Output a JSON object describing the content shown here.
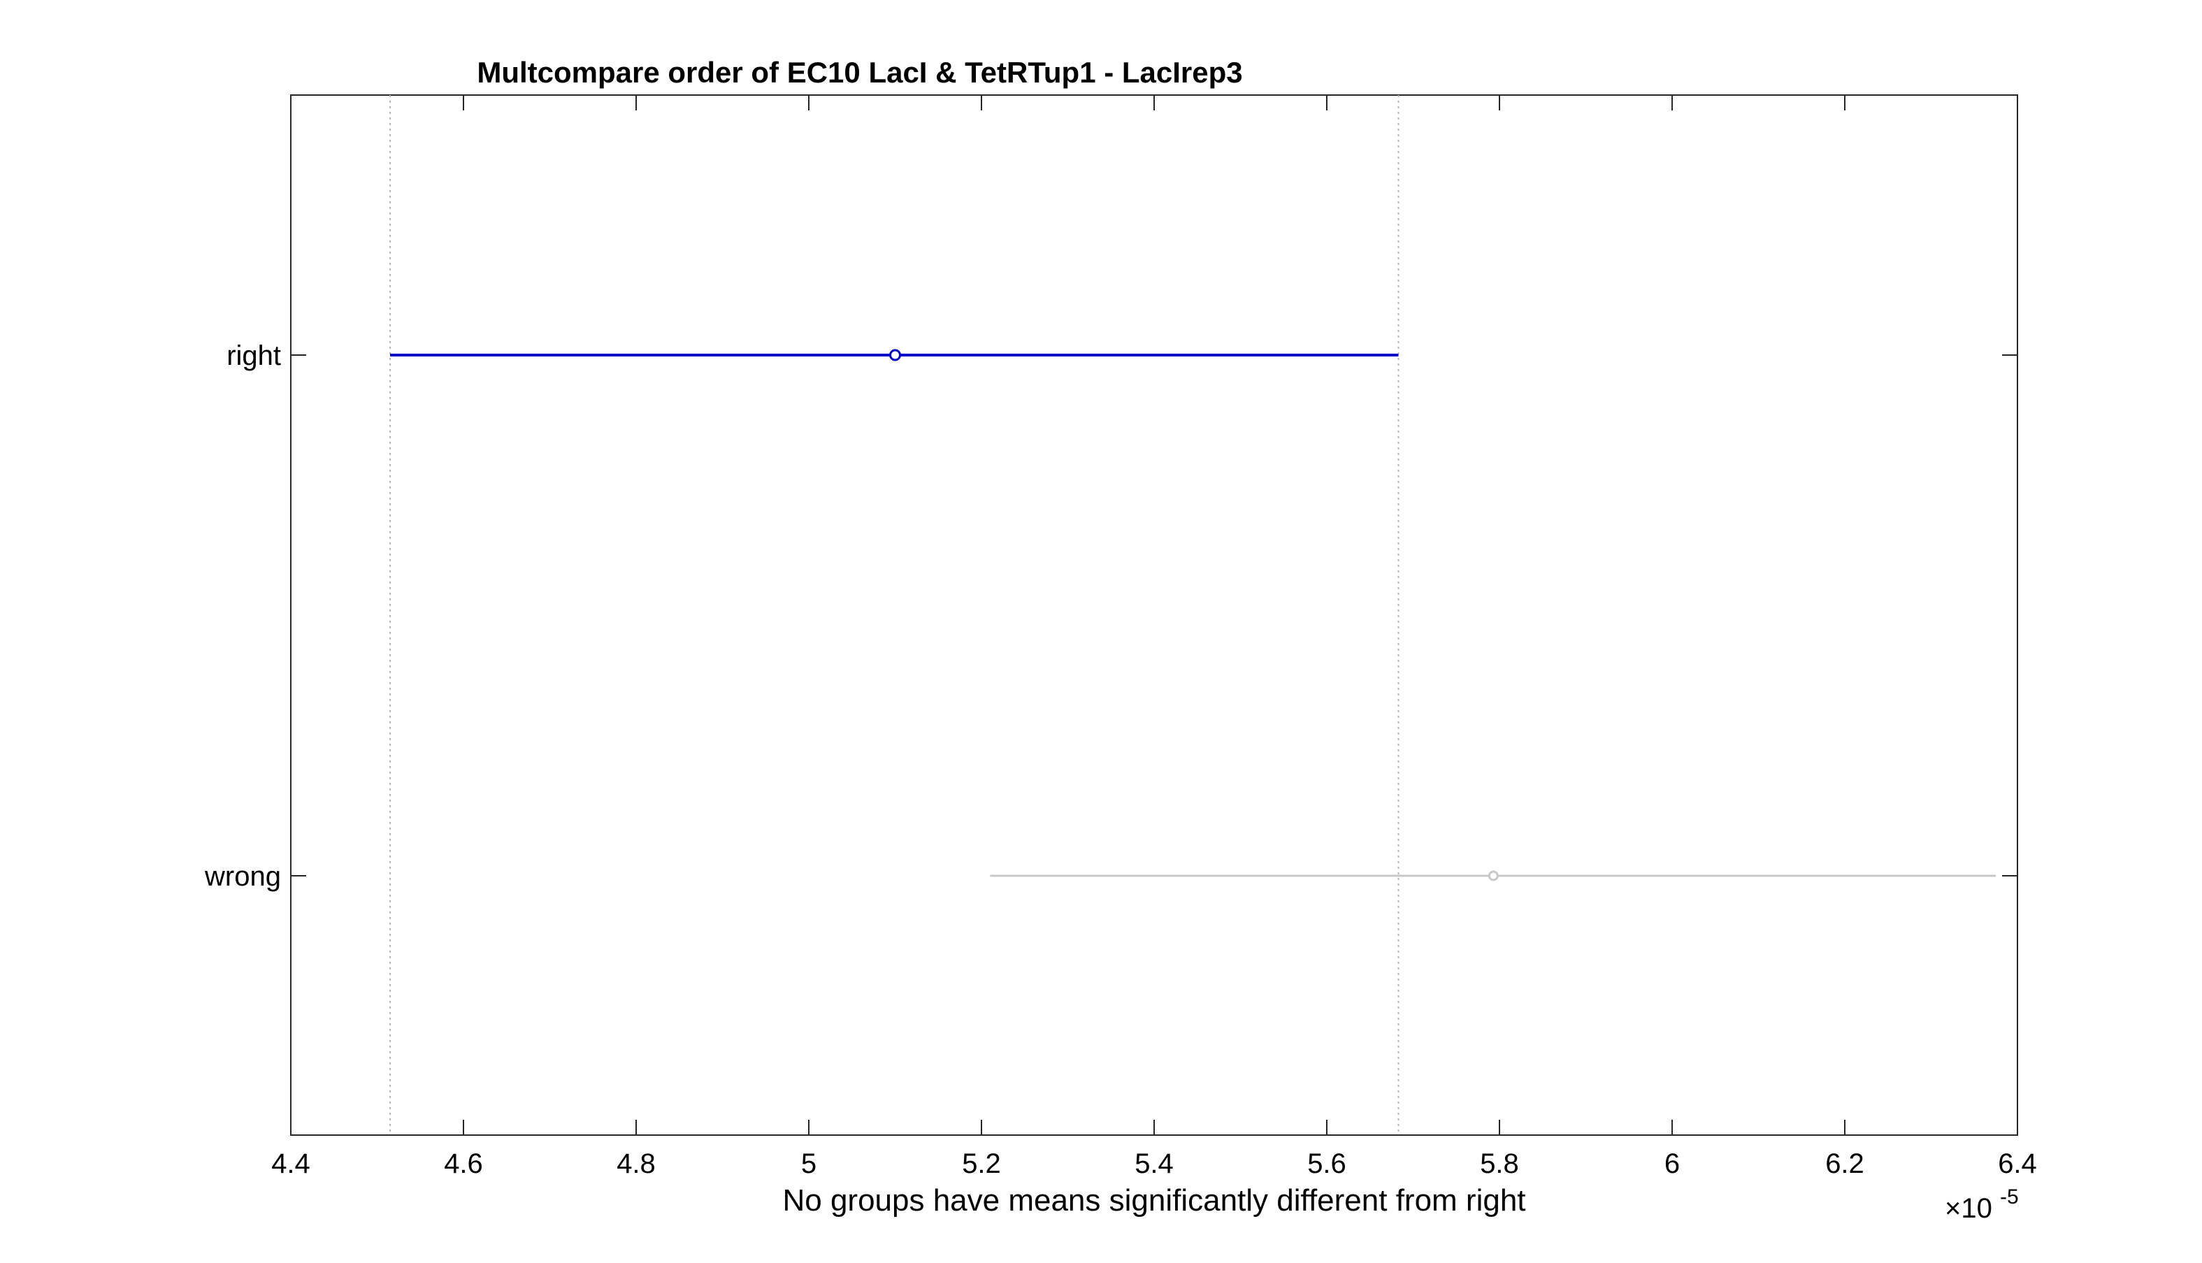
{
  "chart_data": {
    "type": "interval",
    "title": "Multcompare order of EC10 LacI & TetRTup1 - LacIrep3",
    "xlabel": "No groups have means significantly different from right",
    "x_exponent_label": {
      "base": "×10",
      "exponent": "-5"
    },
    "xlim": [
      4.4,
      6.4
    ],
    "x_ticks": [
      4.4,
      4.6,
      4.8,
      5,
      5.2,
      5.4,
      5.6,
      5.8,
      6,
      6.2,
      6.4
    ],
    "x_tick_labels": [
      "4.4",
      "4.6",
      "4.8",
      "5",
      "5.2",
      "5.4",
      "5.6",
      "5.8",
      "6",
      "6.2",
      "6.4"
    ],
    "groups": [
      {
        "label": "right",
        "mean": 5.1,
        "lower": 4.515,
        "upper": 5.683,
        "color": "#0000c8",
        "selected": true
      },
      {
        "label": "wrong",
        "mean": 5.793,
        "lower": 5.21,
        "upper": 6.375,
        "color": "#c8c8c8",
        "selected": false
      }
    ],
    "reference_lines": [
      4.515,
      5.683
    ],
    "grid": false
  }
}
